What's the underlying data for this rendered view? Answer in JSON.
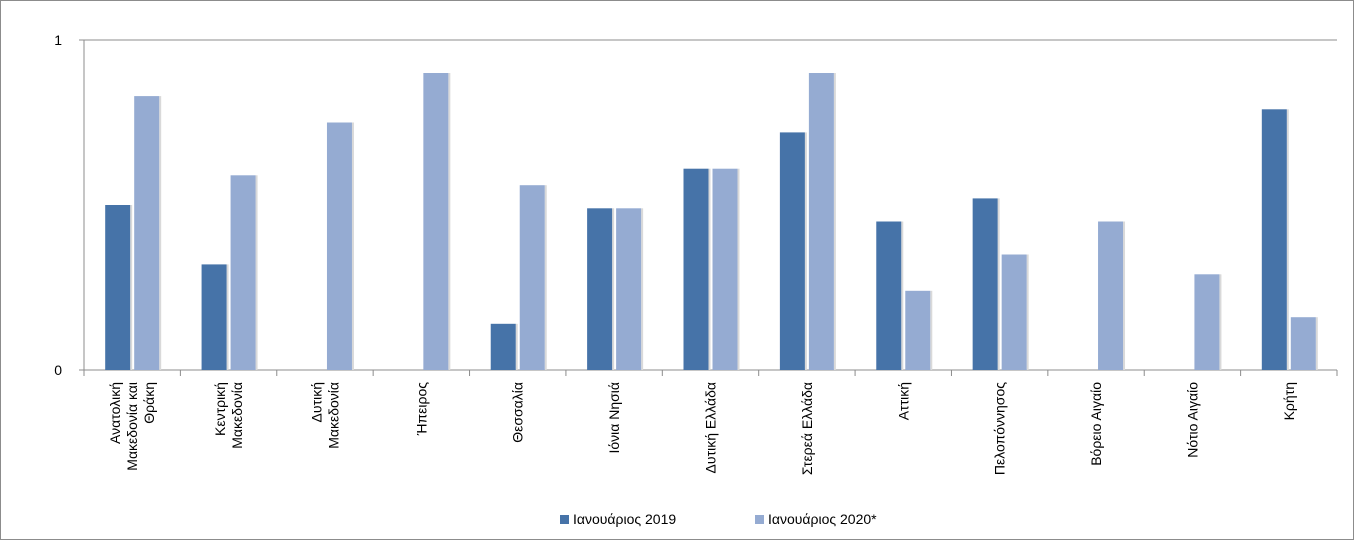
{
  "chart_data": {
    "type": "bar",
    "title": "",
    "xlabel": "",
    "ylabel": "",
    "ylim": [
      0,
      1
    ],
    "yticks": [
      "0",
      "1"
    ],
    "grid": true,
    "legend_position": "bottom",
    "categories": [
      [
        "Ανατολική",
        "Μακεδονία και",
        "Θράκη"
      ],
      [
        "Κεντρική",
        "Μακεδονία"
      ],
      [
        "Δυτική",
        "Μακεδονία"
      ],
      [
        "Ήπειρος"
      ],
      [
        "Θεσσαλία"
      ],
      [
        "Ιόνια Νησιά"
      ],
      [
        "Δυτική Ελλάδα"
      ],
      [
        "Στερεά Ελλάδα"
      ],
      [
        "Αττική"
      ],
      [
        "Πελοπόννησος"
      ],
      [
        "Βόρειο Αιγαίο"
      ],
      [
        "Νότιο Αιγαίο"
      ],
      [
        "Κρήτη"
      ]
    ],
    "series": [
      {
        "name": "Ιανουάριος 2019",
        "color": "#4673A8",
        "values": [
          0.5,
          0.32,
          0,
          0,
          0.14,
          0.49,
          0.61,
          0.72,
          0.45,
          0.52,
          0,
          0,
          0.79
        ]
      },
      {
        "name": "Ιανουάριος 2020*",
        "color": "#95ABD2",
        "values": [
          0.83,
          0.59,
          0.75,
          0.9,
          0.56,
          0.49,
          0.61,
          0.9,
          0.24,
          0.35,
          0.45,
          0.29,
          0.16
        ]
      }
    ]
  }
}
